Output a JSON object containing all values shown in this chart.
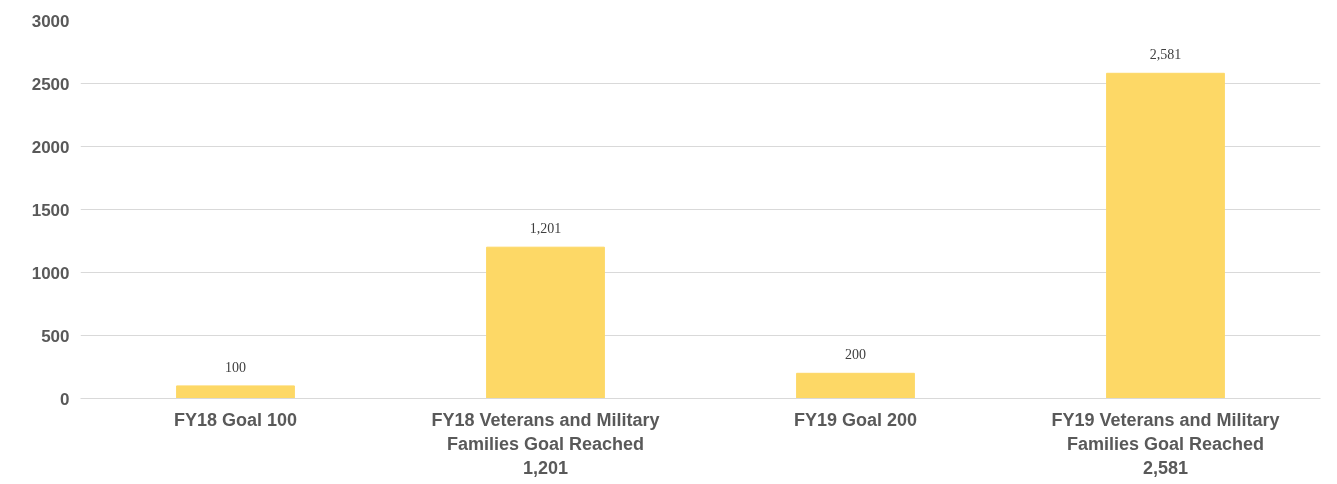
{
  "chart_data": {
    "type": "bar",
    "categories": [
      "FY18 Goal 100",
      "FY18 Veterans and Military Families Goal Reached 1,201",
      "FY19 Goal 200",
      "FY19 Veterans and Military Families Goal Reached 2,581"
    ],
    "values": [
      100,
      1201,
      200,
      2581
    ],
    "value_labels": [
      "100",
      "1,201",
      "200",
      "2,581"
    ],
    "color": "#fdd866",
    "ylim": [
      0,
      3000
    ],
    "yticks": [
      0,
      500,
      1000,
      1500,
      2000,
      2500,
      3000
    ],
    "grid": "y"
  }
}
